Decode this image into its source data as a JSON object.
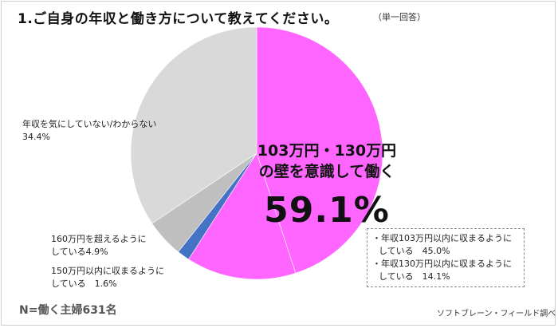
{
  "title": "1.ご自身の年収と働き方について教えてください。",
  "note": "（単一回答）",
  "highlight": {
    "line1": "103万円・130万円",
    "line2": "の壁を意識して働く",
    "percent": "59.1%"
  },
  "callout": {
    "item1_line1": "・年収103万円以内に収まるように",
    "item1_line2": "している　45.0%",
    "item2_line1": "・年収130万円以内に収まるように",
    "item2_line2": "している　14.1%"
  },
  "labels": {
    "over160_line1": "160万円を超えるように",
    "over160_line2": "している4.9%",
    "within150_line1": "150万円以内に収まるように",
    "within150_line2": "している　1.6%",
    "unaware_line1": "年収を気にしていない/わからない",
    "unaware_line2": "34.4%"
  },
  "footer": {
    "sample": "N=働く主婦631名",
    "source": "ソフトブレーン・フィールド調べ"
  },
  "chart_data": {
    "type": "pie",
    "slices": [
      {
        "label": "年収103万円以内に収まるようにしている",
        "value": 45.0,
        "color": "#ff66ff"
      },
      {
        "label": "年収130万円以内に収まるようにしている",
        "value": 14.1,
        "color": "#ff66ff"
      },
      {
        "label": "150万円以内に収まるようにしている",
        "value": 1.6,
        "color": "#4472c4"
      },
      {
        "label": "160万円を超えるようにしている",
        "value": 4.9,
        "color": "#bfbfbf"
      },
      {
        "label": "年収を気にしていない/わからない",
        "value": 34.4,
        "color": "#d9d9d9"
      }
    ],
    "start": "12 o'clock",
    "direction": "clockwise"
  }
}
